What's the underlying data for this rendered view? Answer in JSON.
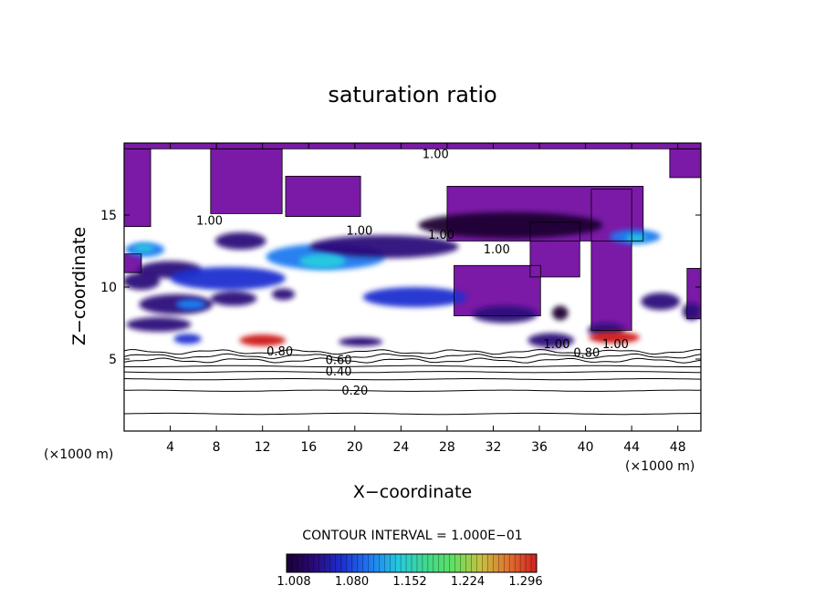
{
  "chart_data": {
    "type": "heatmap",
    "title": "saturation ratio",
    "xlabel": "X−coordinate",
    "ylabel": "Z−coordinate",
    "x_unit": "(×1000 m)",
    "y_unit": "(×1000 m)",
    "xlim": [
      0,
      50
    ],
    "ylim": [
      0,
      20
    ],
    "x_ticks": [
      4,
      8,
      12,
      16,
      20,
      24,
      28,
      32,
      36,
      40,
      44,
      48
    ],
    "y_ticks": [
      5,
      10,
      15
    ],
    "contour_interval_text": "CONTOUR INTERVAL = 1.000E−01",
    "colorbar": {
      "min": 1.0,
      "max": 1.32,
      "ticks": [
        "1.008",
        "1.080",
        "1.152",
        "1.224",
        "1.296"
      ],
      "colors": [
        "#1a0033",
        "#2a0a7a",
        "#1c2fd0",
        "#1f7af0",
        "#25c8e0",
        "#40d890",
        "#60e060",
        "#c8c040",
        "#e07030",
        "#d02020"
      ]
    },
    "contour_labels": [
      {
        "text": "0.20",
        "x": 20,
        "z": 2.8
      },
      {
        "text": "0.40",
        "x": 18.6,
        "z": 4.1
      },
      {
        "text": "0.60",
        "x": 18.6,
        "z": 4.9
      },
      {
        "text": "0.80",
        "x": 13.5,
        "z": 5.5
      },
      {
        "text": "0.80",
        "x": 40.1,
        "z": 5.4
      },
      {
        "text": "1.00",
        "x": 7.4,
        "z": 14.6
      },
      {
        "text": "1.00",
        "x": 20.4,
        "z": 13.9
      },
      {
        "text": "1.00",
        "x": 27.5,
        "z": 13.6
      },
      {
        "text": "1.00",
        "x": 32.3,
        "z": 12.6
      },
      {
        "text": "1.00",
        "x": 27,
        "z": 19.2
      },
      {
        "text": "1.00",
        "x": 37.5,
        "z": 6
      },
      {
        "text": "1.00",
        "x": 42.6,
        "z": 6
      }
    ],
    "layers": {
      "purple_regions": [
        {
          "x": 0,
          "z": 19.6,
          "w": 50,
          "h": 0.4
        },
        {
          "x": 0,
          "z": 14.2,
          "w": 2.3,
          "h": 5.4
        },
        {
          "x": 7.5,
          "z": 15.1,
          "w": 6.2,
          "h": 4.5
        },
        {
          "x": 14,
          "z": 14.9,
          "w": 6.5,
          "h": 2.8
        },
        {
          "x": 28.6,
          "z": 8.0,
          "w": 7.5,
          "h": 3.5
        },
        {
          "x": 35.2,
          "z": 10.7,
          "w": 4.3,
          "h": 3.8
        },
        {
          "x": 40.5,
          "z": 7.0,
          "w": 3.5,
          "h": 9.8
        },
        {
          "x": 47.3,
          "z": 17.6,
          "w": 2.7,
          "h": 2.0
        },
        {
          "x": 48.8,
          "z": 7.8,
          "w": 1.2,
          "h": 3.5
        },
        {
          "x": 0,
          "z": 11.0,
          "w": 1.5,
          "h": 1.3
        },
        {
          "x": 28,
          "z": 13.2,
          "w": 17,
          "h": 3.8
        }
      ],
      "moist_blobs": [
        {
          "x": 1.8,
          "z": 12.6,
          "rx": 1.7,
          "rz": 0.5,
          "v": 1.1
        },
        {
          "x": 10.1,
          "z": 13.2,
          "rx": 2.2,
          "rz": 0.6,
          "v": 1.05
        },
        {
          "x": 17.5,
          "z": 12.1,
          "rx": 5.2,
          "rz": 0.9,
          "v": 1.1
        },
        {
          "x": 22.5,
          "z": 12.8,
          "rx": 6.5,
          "rz": 0.8,
          "v": 1.04
        },
        {
          "x": 33.5,
          "z": 14.3,
          "rx": 8.0,
          "rz": 0.9,
          "v": 1.02
        },
        {
          "x": 4.0,
          "z": 11.2,
          "rx": 2.8,
          "rz": 0.6,
          "v": 1.05
        },
        {
          "x": 9.0,
          "z": 10.6,
          "rx": 5.0,
          "rz": 0.8,
          "v": 1.08
        },
        {
          "x": 1.5,
          "z": 10.4,
          "rx": 1.6,
          "rz": 0.6,
          "v": 1.05
        },
        {
          "x": 4.5,
          "z": 8.8,
          "rx": 3.2,
          "rz": 0.7,
          "v": 1.06
        },
        {
          "x": 9.5,
          "z": 9.2,
          "rx": 2.0,
          "rz": 0.5,
          "v": 1.04
        },
        {
          "x": 3.0,
          "z": 7.4,
          "rx": 2.8,
          "rz": 0.5,
          "v": 1.05
        },
        {
          "x": 5.5,
          "z": 6.4,
          "rx": 1.2,
          "rz": 0.35,
          "v": 1.08
        },
        {
          "x": 13.8,
          "z": 9.5,
          "rx": 1.0,
          "rz": 0.4,
          "v": 1.04
        },
        {
          "x": 25.2,
          "z": 9.3,
          "rx": 4.5,
          "rz": 0.7,
          "v": 1.07
        },
        {
          "x": 33.0,
          "z": 8.1,
          "rx": 2.8,
          "rz": 0.6,
          "v": 1.04
        },
        {
          "x": 37.0,
          "z": 6.3,
          "rx": 2.0,
          "rz": 0.5,
          "v": 1.05
        },
        {
          "x": 37.8,
          "z": 8.2,
          "rx": 0.7,
          "rz": 0.5,
          "v": 1.03
        },
        {
          "x": 44.3,
          "z": 13.5,
          "rx": 2.2,
          "rz": 0.5,
          "v": 1.1
        },
        {
          "x": 46.5,
          "z": 9.0,
          "rx": 1.7,
          "rz": 0.6,
          "v": 1.06
        },
        {
          "x": 49.2,
          "z": 8.3,
          "rx": 0.8,
          "rz": 0.6,
          "v": 1.05
        },
        {
          "x": 41.8,
          "z": 7.0,
          "rx": 1.6,
          "rz": 0.5,
          "v": 1.04
        }
      ],
      "cores": [
        {
          "x": 12.0,
          "z": 6.3,
          "rx": 2.0,
          "rz": 0.4,
          "v": 1.3
        },
        {
          "x": 20.5,
          "z": 6.2,
          "rx": 1.9,
          "rz": 0.3,
          "v": 1.06
        },
        {
          "x": 42.5,
          "z": 6.5,
          "rx": 2.2,
          "rz": 0.4,
          "v": 1.29
        },
        {
          "x": 1.7,
          "z": 12.7,
          "rx": 0.9,
          "rz": 0.25,
          "v": 1.16
        },
        {
          "x": 17.2,
          "z": 11.8,
          "rx": 2.0,
          "rz": 0.5,
          "v": 1.14
        },
        {
          "x": 44.4,
          "z": 13.4,
          "rx": 0.9,
          "rz": 0.25,
          "v": 1.16
        },
        {
          "x": 5.8,
          "z": 8.8,
          "rx": 1.3,
          "rz": 0.35,
          "v": 1.12
        }
      ],
      "isolines": [
        {
          "z": 1.2,
          "value": "0.10"
        },
        {
          "z": 2.8,
          "value": "0.20"
        },
        {
          "z": 3.6,
          "value": "0.30"
        },
        {
          "z": 4.1,
          "value": "0.40"
        },
        {
          "z": 4.5,
          "value": "0.50"
        },
        {
          "z": 4.9,
          "value": "0.60"
        },
        {
          "z": 5.2,
          "value": "0.70"
        },
        {
          "z": 5.5,
          "value": "0.80"
        }
      ]
    }
  }
}
